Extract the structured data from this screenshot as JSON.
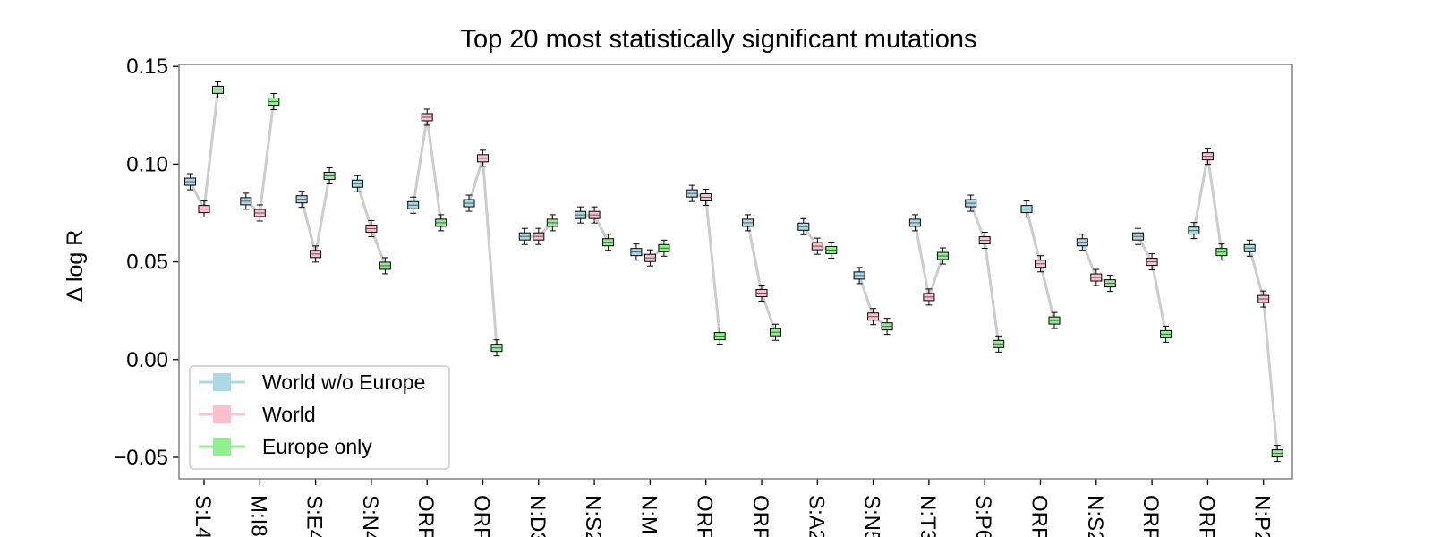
{
  "chart_data": {
    "type": "box",
    "title": "Top 20 most statistically significant mutations",
    "xlabel": "",
    "ylabel": "Δ log R",
    "ylim": [
      -0.061,
      0.151
    ],
    "yticks": [
      0.15,
      0.1,
      0.05,
      0.0,
      -0.05
    ],
    "ytick_labels": [
      "0.15",
      "0.10",
      "0.05",
      "0.00",
      "−0.05"
    ],
    "grid": false,
    "legend_position": "lower-left",
    "categories": [
      "S:L4",
      "M:I8",
      "S:E4",
      "S:N4",
      "ORF",
      "ORF",
      "N:D3",
      "N:S2",
      "N:M",
      "ORF",
      "ORF",
      "S:A2",
      "S:N5",
      "N:T3",
      "S:P6",
      "ORF",
      "N:S2",
      "ORF",
      "ORF",
      "N:P2"
    ],
    "series": [
      {
        "name": "World w/o Europe",
        "color": "#add8e6",
        "values": [
          0.091,
          0.081,
          0.082,
          0.09,
          0.079,
          0.08,
          0.063,
          0.074,
          0.055,
          0.085,
          0.07,
          0.068,
          0.043,
          0.07,
          0.08,
          0.077,
          0.06,
          0.063,
          0.066,
          0.057
        ]
      },
      {
        "name": "World",
        "color": "#ffc0cb",
        "values": [
          0.077,
          0.075,
          0.054,
          0.067,
          0.124,
          0.103,
          0.063,
          0.074,
          0.052,
          0.083,
          0.034,
          0.058,
          0.022,
          0.032,
          0.061,
          0.049,
          0.042,
          0.05,
          0.104,
          0.031
        ]
      },
      {
        "name": "Europe only",
        "color": "#90ee90",
        "values": [
          0.138,
          0.132,
          0.094,
          0.048,
          0.07,
          0.006,
          0.07,
          0.06,
          0.057,
          0.012,
          0.014,
          0.056,
          0.017,
          0.053,
          0.008,
          0.02,
          0.039,
          0.013,
          0.055,
          -0.048
        ]
      }
    ],
    "connector_color": "#cccccc"
  }
}
